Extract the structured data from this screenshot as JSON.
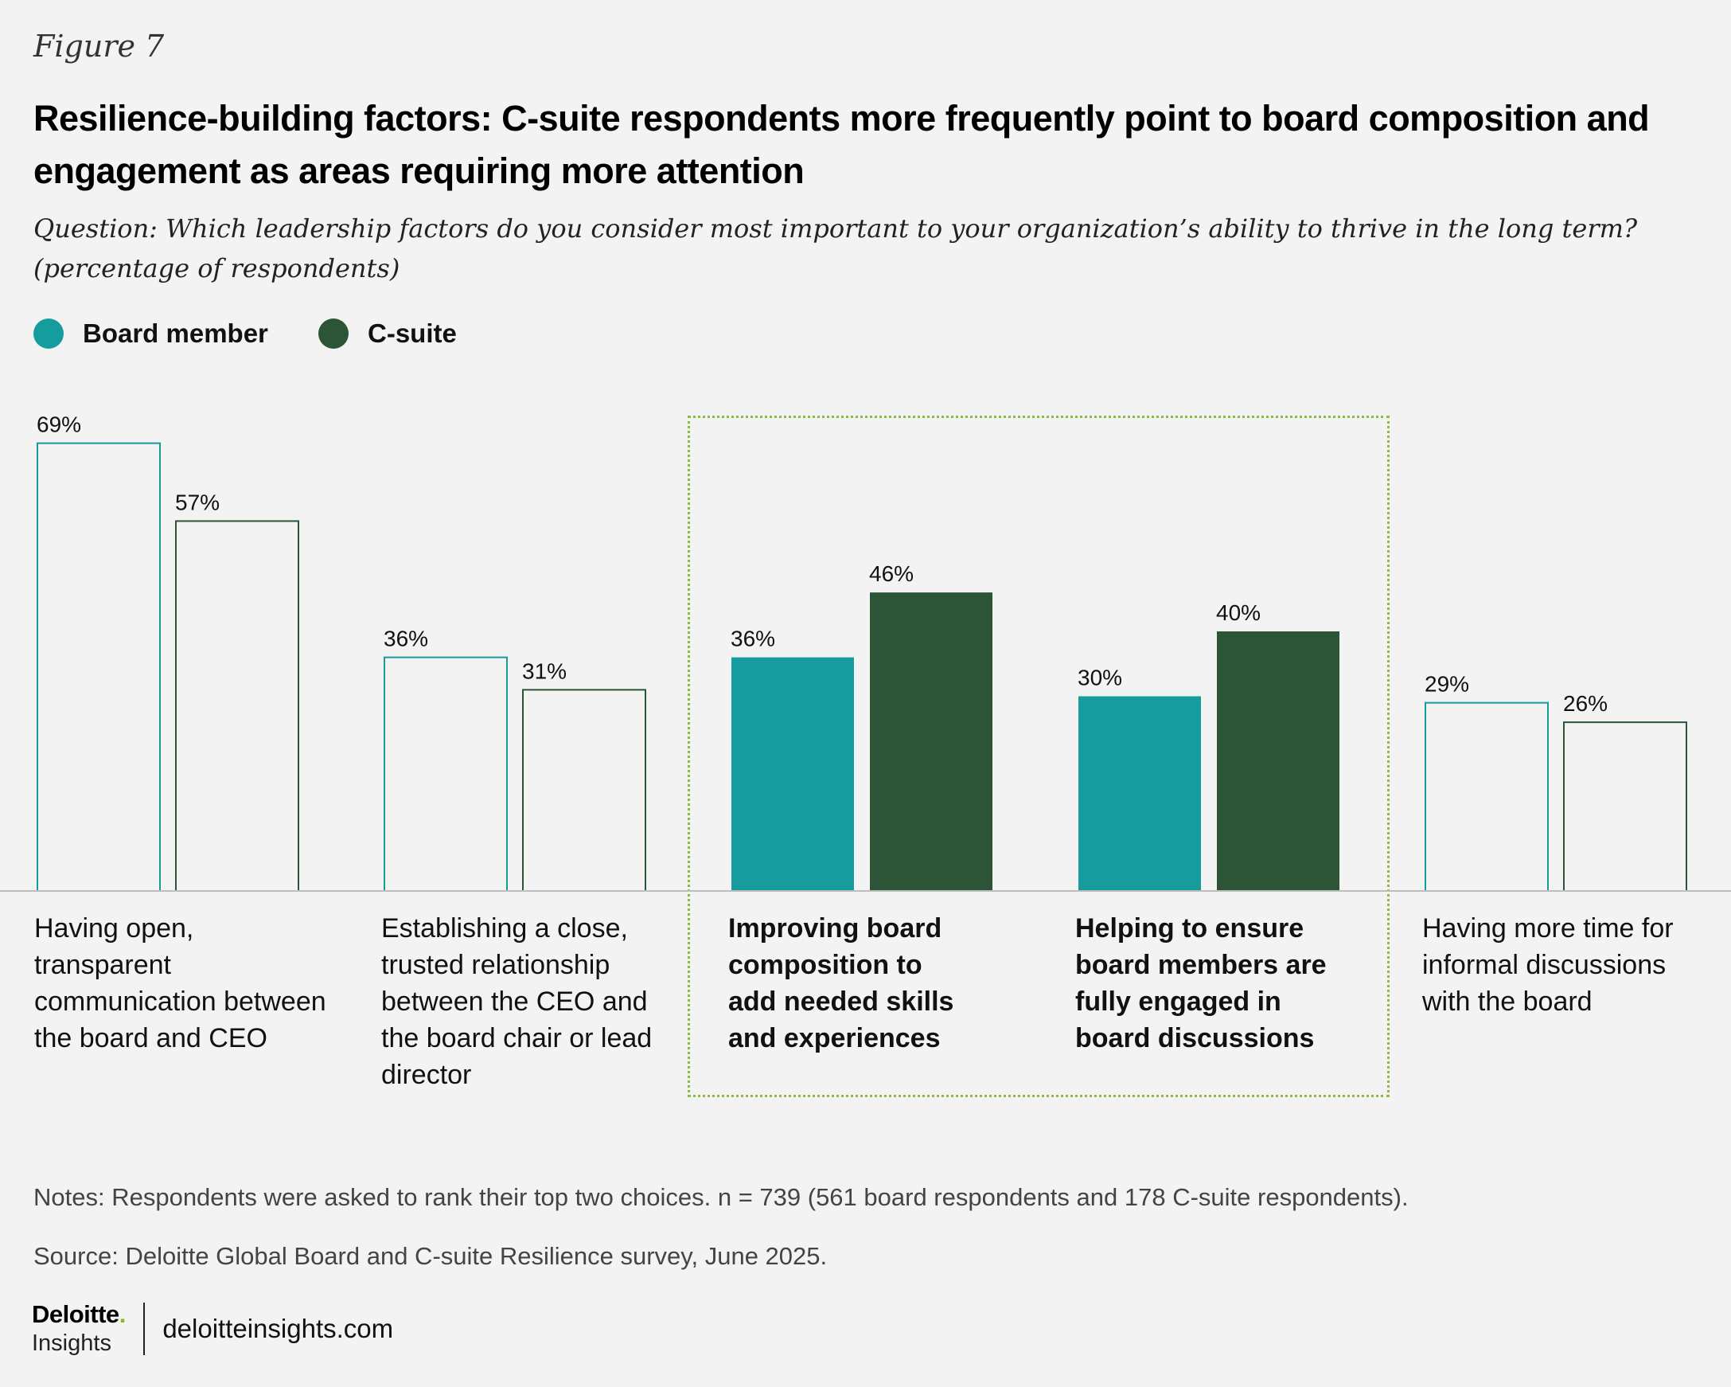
{
  "figure_label": "Figure 7",
  "title": "Resilience-building factors: C-suite respondents more frequently point to board composition and engagement as areas requiring more attention",
  "question": "Question: Which leadership factors do you consider most important to your organization’s ability to thrive in the long term? (percentage of respondents)",
  "legend": [
    {
      "label": "Board member",
      "color": "#179c9e"
    },
    {
      "label": "C-suite",
      "color": "#2b5536"
    }
  ],
  "chart_data": {
    "type": "bar",
    "title": "Resilience-building factors: C-suite respondents more frequently point to board composition and engagement as areas requiring more attention",
    "categories": [
      "Having open, transparent communication between the board and CEO",
      "Establishing a close, trusted relationship between the CEO and the board chair or lead director",
      "Improving board composition to add needed skills and experiences",
      "Helping to ensure board members are fully engaged in board discussions",
      "Having more time for informal discussions with the board"
    ],
    "category_label_lines": [
      [
        "Having open, transparent",
        "communication between",
        "the board and CEO"
      ],
      [
        "Establishing a close,",
        "trusted relationship",
        "between the CEO and",
        "the board chair or lead",
        "director"
      ],
      [
        "Improving board",
        "composition to",
        "add needed skills",
        "and experiences"
      ],
      [
        "Helping to ensure",
        "board members are",
        "fully engaged in",
        "board discussions"
      ],
      [
        "Having more time for",
        "informal discussions",
        "with the board"
      ]
    ],
    "highlighted": [
      false,
      false,
      true,
      true,
      false
    ],
    "series": [
      {
        "name": "Board member",
        "values": [
          69,
          36,
          36,
          30,
          29
        ],
        "labels": [
          "69%",
          "36%",
          "36%",
          "30%",
          "29%"
        ],
        "color": "#179c9e"
      },
      {
        "name": "C-suite",
        "values": [
          57,
          31,
          46,
          40,
          26
        ],
        "labels": [
          "57%",
          "31%",
          "46%",
          "40%",
          "26%"
        ],
        "color": "#2b5536"
      }
    ],
    "ylim": [
      0,
      75
    ],
    "xlabel": "",
    "ylabel": "",
    "unit": "%"
  },
  "notes": "Notes: Respondents were asked to rank their top two choices. n = 739 (561 board respondents and 178 C-suite respondents).",
  "source": "Source: Deloitte Global Board and C-suite Resilience survey, June 2025.",
  "brand": {
    "name": "Deloitte",
    "dot": ".",
    "sub": "Insights",
    "url": "deloitteinsights.com"
  }
}
